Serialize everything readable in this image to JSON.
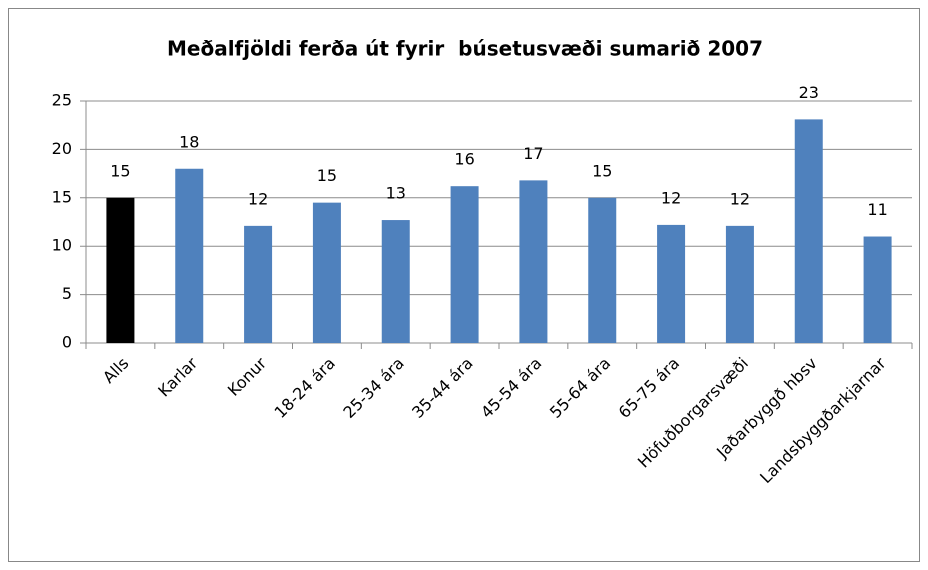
{
  "chart_data": {
    "type": "bar",
    "title": "Meðalfjöldi ferða út fyrir  búsetusvæði sumarið 2007",
    "categories": [
      "Alls",
      "Karlar",
      "Konur",
      "18-24 ára",
      "25-34 ára",
      "35-44 ára",
      "45-54 ára",
      "55-64 ára",
      "65-75 ára",
      "Höfuðborgarsvæði",
      "Jaðarbyggð hbsv",
      "Landsbyggðarkjarnar"
    ],
    "values": [
      15,
      18,
      12.1,
      14.5,
      12.7,
      16.2,
      16.8,
      15,
      12.2,
      12.1,
      23.1,
      11
    ],
    "value_labels": [
      "15",
      "18",
      "12",
      "15",
      "13",
      "16",
      "17",
      "15",
      "12",
      "12",
      "23",
      "11"
    ],
    "colors": [
      "#000000",
      "#4f81bd",
      "#4f81bd",
      "#4f81bd",
      "#4f81bd",
      "#4f81bd",
      "#4f81bd",
      "#4f81bd",
      "#4f81bd",
      "#4f81bd",
      "#4f81bd",
      "#4f81bd"
    ],
    "ylim": [
      0,
      25
    ],
    "yticks": [
      0,
      5,
      10,
      15,
      20,
      25
    ],
    "grid": true
  }
}
